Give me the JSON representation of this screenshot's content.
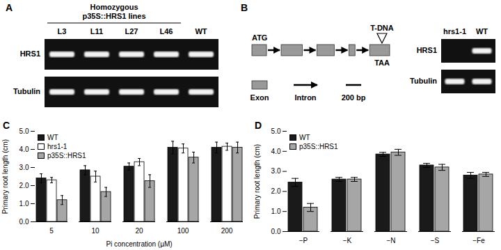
{
  "panel_A": {
    "letter": "A",
    "header": "Homozygous p35S::HRS1 lines",
    "lanes": [
      "L3",
      "L11",
      "L27",
      "L46",
      "WT"
    ],
    "rows": [
      {
        "label": "HRS1",
        "bands": [
          true,
          true,
          true,
          true,
          true
        ]
      },
      {
        "label": "Tubulin",
        "bands": [
          true,
          true,
          true,
          true,
          true
        ]
      }
    ]
  },
  "panel_B": {
    "letter": "B",
    "gene": {
      "start_label": "ATG",
      "stop_label": "TAA",
      "insertion_label": "T-DNA",
      "exon_lengths_bp": [
        190,
        275,
        225,
        80,
        260
      ],
      "intron_lengths_bp": [
        190,
        190,
        190,
        190
      ],
      "insertion_position_bp": 1690,
      "legend": {
        "exon": "Exon",
        "intron": "Intron",
        "scale_bar": {
          "value": 200,
          "label": "200 bp"
        }
      }
    },
    "gel": {
      "lanes": [
        "hrs1-1",
        "WT"
      ],
      "rows": [
        {
          "label": "HRS1",
          "bands": [
            false,
            true
          ]
        },
        {
          "label": "Tubulin",
          "bands": [
            true,
            true
          ]
        }
      ]
    }
  },
  "chart_data": [
    {
      "panel": "C",
      "type": "bar",
      "x_label": "Pi concentration (µM)",
      "y_label": "Primary root length (cm)",
      "categories": [
        "5",
        "10",
        "20",
        "100",
        "200"
      ],
      "series": [
        {
          "name": "WT",
          "color": "#1a1a1a",
          "values": [
            2.4,
            2.85,
            3.05,
            4.1,
            4.1
          ],
          "errors": [
            0.25,
            0.25,
            0.2,
            0.35,
            0.3
          ]
        },
        {
          "name": "hrs1-1",
          "color": "#ffffff",
          "values": [
            2.3,
            2.5,
            3.3,
            4.05,
            4.15
          ],
          "errors": [
            0.15,
            0.3,
            0.2,
            0.25,
            0.2
          ]
        },
        {
          "name": "p35S::HRS1",
          "color": "#a6a6a6",
          "values": [
            1.2,
            1.65,
            2.25,
            3.55,
            4.1
          ],
          "errors": [
            0.25,
            0.25,
            0.35,
            0.3,
            0.3
          ]
        }
      ],
      "ylim": [
        0,
        5
      ],
      "yticks": [
        0,
        1,
        2,
        3,
        4,
        5
      ],
      "legend": "top-left"
    },
    {
      "panel": "D",
      "type": "bar",
      "y_label": "Primary root length (cm)",
      "categories": [
        "−P",
        "−K",
        "−N",
        "−S",
        "−Fe"
      ],
      "series": [
        {
          "name": "WT",
          "color": "#1a1a1a",
          "values": [
            2.45,
            2.6,
            3.85,
            3.3,
            2.8
          ],
          "errors": [
            0.2,
            0.1,
            0.1,
            0.1,
            0.15
          ]
        },
        {
          "name": "p35S::HRS1",
          "color": "#a6a6a6",
          "values": [
            1.2,
            2.6,
            3.95,
            3.2,
            2.85
          ],
          "errors": [
            0.2,
            0.1,
            0.15,
            0.15,
            0.1
          ]
        }
      ],
      "ylim": [
        0,
        5
      ],
      "yticks": [
        0,
        1,
        2,
        3,
        4,
        5
      ],
      "legend": "top-left"
    }
  ]
}
